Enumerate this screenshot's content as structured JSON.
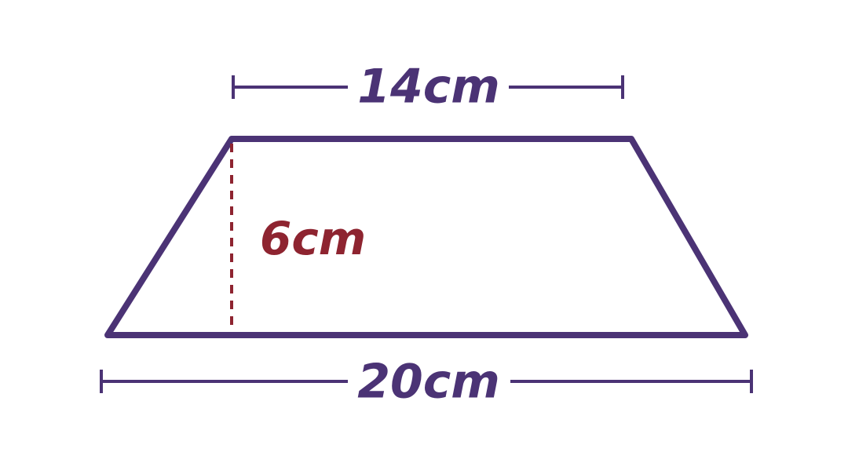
{
  "diagram": {
    "top_label": "14cm",
    "bottom_label": "20cm",
    "height_label": "6cm"
  },
  "colors": {
    "outline": "#4b3375",
    "height": "#8e2430",
    "background": "#ffffff"
  }
}
